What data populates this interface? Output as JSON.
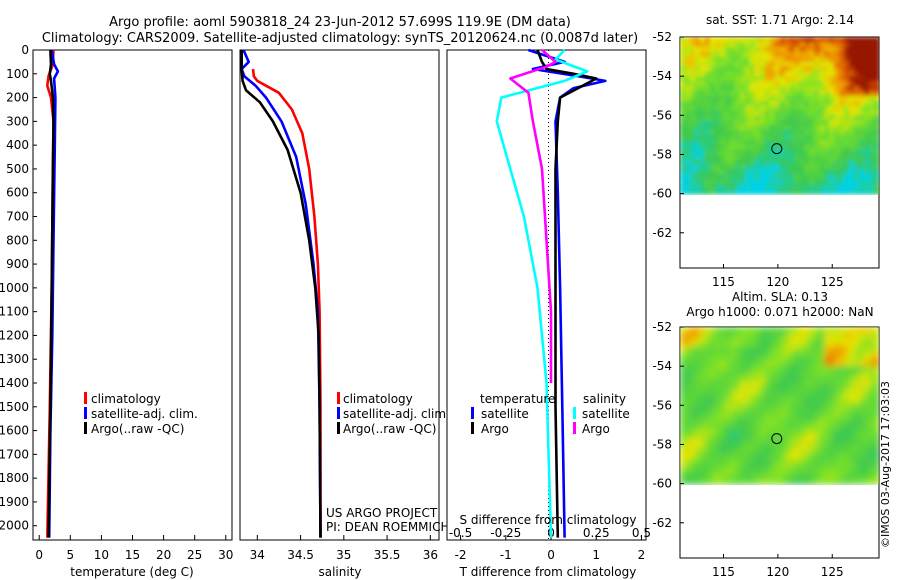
{
  "header": {
    "title_line1": "Argo profile: aoml 5903818_24 23-Jun-2012 57.699S 119.9E (DM data)",
    "title_line2": "Climatology: CARS2009. Satellite-adjusted climatology: synTS_20120624.nc (0.0087d later)"
  },
  "colors": {
    "climatology": "#ff0000",
    "satellite": "#0000ff",
    "argo": "#000000",
    "sat_salinity": "#00ffff",
    "argo_salinity": "#ff00ff"
  },
  "side_text": "©IMOS 03-Aug-2017 17:03:03",
  "chart_data": [
    {
      "type": "line",
      "id": "temperature",
      "xlabel": "temperature (deg C)",
      "ylabel": "",
      "xlim": [
        -1,
        31
      ],
      "ylim": [
        2060,
        0
      ],
      "xticks": [
        0,
        5,
        10,
        15,
        20,
        25,
        30
      ],
      "yticks": [
        0,
        100,
        200,
        300,
        400,
        500,
        600,
        700,
        800,
        900,
        1000,
        1100,
        1200,
        1300,
        1400,
        1500,
        1600,
        1700,
        1800,
        1900,
        2000
      ],
      "legend": [
        "climatology",
        "satellite-adj. clim.",
        "Argo(..raw -QC)"
      ],
      "series": [
        {
          "name": "climatology",
          "color": "#ff0000",
          "points": [
            [
              2.3,
              0
            ],
            [
              2.2,
              60
            ],
            [
              1.5,
              110
            ],
            [
              1.3,
              150
            ],
            [
              1.9,
              200
            ],
            [
              2.3,
              300
            ],
            [
              2.2,
              500
            ],
            [
              2.0,
              1000
            ],
            [
              1.7,
              1500
            ],
            [
              1.3,
              2050
            ]
          ]
        },
        {
          "name": "satellite-adj. clim.",
          "color": "#0000ff",
          "points": [
            [
              2.0,
              0
            ],
            [
              2.4,
              60
            ],
            [
              3.0,
              90
            ],
            [
              2.4,
              120
            ],
            [
              2.6,
              200
            ],
            [
              2.5,
              400
            ],
            [
              2.3,
              800
            ],
            [
              2.1,
              1200
            ],
            [
              1.8,
              1600
            ],
            [
              1.6,
              2050
            ]
          ]
        },
        {
          "name": "Argo(..raw -QC)",
          "color": "#000000",
          "points": [
            [
              1.8,
              0
            ],
            [
              1.9,
              60
            ],
            [
              1.7,
              100
            ],
            [
              1.9,
              130
            ],
            [
              2.2,
              200
            ],
            [
              2.3,
              300
            ],
            [
              2.2,
              500
            ],
            [
              2.0,
              1000
            ],
            [
              1.8,
              1500
            ],
            [
              1.5,
              2050
            ]
          ]
        }
      ]
    },
    {
      "type": "line",
      "id": "salinity",
      "xlabel": "salinity",
      "ylabel": "",
      "xlim": [
        33.8,
        36.1
      ],
      "ylim": [
        2060,
        0
      ],
      "xticks": [
        34,
        34.5,
        35,
        35.5,
        36
      ],
      "xticklabels": [
        "34",
        "34.5",
        "35",
        "35.5",
        "36"
      ],
      "legend": [
        "climatology",
        "satellite-adj. clim.",
        "Argo(..raw -QC)"
      ],
      "annotations": [
        "US ARGO PROJECT",
        "PI: DEAN ROEMMICH"
      ],
      "series": [
        {
          "name": "climatology",
          "color": "#ff0000",
          "points": [
            [
              33.95,
              80
            ],
            [
              33.96,
              110
            ],
            [
              34.0,
              130
            ],
            [
              34.1,
              150
            ],
            [
              34.25,
              180
            ],
            [
              34.4,
              250
            ],
            [
              34.52,
              350
            ],
            [
              34.6,
              500
            ],
            [
              34.66,
              700
            ],
            [
              34.7,
              900
            ],
            [
              34.72,
              1100
            ],
            [
              34.73,
              1500
            ],
            [
              34.73,
              2050
            ]
          ]
        },
        {
          "name": "satellite-adj. clim.",
          "color": "#0000ff",
          "points": [
            [
              33.84,
              0
            ],
            [
              33.9,
              50
            ],
            [
              33.82,
              80
            ],
            [
              33.85,
              110
            ],
            [
              33.98,
              150
            ],
            [
              34.1,
              200
            ],
            [
              34.28,
              300
            ],
            [
              34.45,
              450
            ],
            [
              34.56,
              650
            ],
            [
              34.65,
              900
            ],
            [
              34.7,
              1100
            ],
            [
              34.72,
              1500
            ],
            [
              34.73,
              2050
            ]
          ]
        },
        {
          "name": "Argo(..raw -QC)",
          "color": "#000000",
          "points": [
            [
              33.82,
              0
            ],
            [
              33.82,
              80
            ],
            [
              33.83,
              130
            ],
            [
              33.87,
              170
            ],
            [
              34.03,
              220
            ],
            [
              34.18,
              300
            ],
            [
              34.35,
              420
            ],
            [
              34.5,
              600
            ],
            [
              34.6,
              800
            ],
            [
              34.67,
              1000
            ],
            [
              34.71,
              1200
            ],
            [
              34.72,
              1500
            ],
            [
              34.73,
              2050
            ]
          ]
        }
      ]
    },
    {
      "type": "line",
      "id": "difference",
      "xlabel": "T difference from climatology",
      "x2label": "S difference from climatology",
      "xlim": [
        -2.3,
        2.1
      ],
      "ylim": [
        2060,
        0
      ],
      "xticks": [
        -2,
        -1,
        0,
        1,
        2
      ],
      "x2ticklabels": [
        "-0.5",
        "-0.25",
        "0",
        "0.25",
        "0.5"
      ],
      "legend_titles": [
        "temperature",
        "salinity"
      ],
      "legend": [
        "satellite",
        "Argo",
        "satellite",
        "Argo"
      ],
      "series": [
        {
          "name": "satellite",
          "quantity": "temperature",
          "color": "#0000ff",
          "points": [
            [
              -0.5,
              0
            ],
            [
              0.3,
              50
            ],
            [
              -0.4,
              80
            ],
            [
              0.6,
              110
            ],
            [
              1.2,
              130
            ],
            [
              0.5,
              160
            ],
            [
              0.2,
              200
            ],
            [
              0.1,
              300
            ],
            [
              0.15,
              600
            ],
            [
              0.2,
              1000
            ],
            [
              0.25,
              1500
            ],
            [
              0.3,
              2050
            ]
          ]
        },
        {
          "name": "Argo",
          "quantity": "temperature",
          "color": "#000000",
          "points": [
            [
              -0.3,
              0
            ],
            [
              -0.2,
              50
            ],
            [
              -0.1,
              80
            ],
            [
              0.5,
              100
            ],
            [
              1.0,
              120
            ],
            [
              0.6,
              160
            ],
            [
              0.2,
              200
            ],
            [
              0.15,
              300
            ],
            [
              0.1,
              500
            ],
            [
              0.1,
              1000
            ],
            [
              0.1,
              1500
            ],
            [
              0.15,
              2050
            ]
          ]
        },
        {
          "name": "satellite",
          "quantity": "salinity",
          "color": "#00ffff",
          "points": [
            [
              0.3,
              0
            ],
            [
              0.1,
              40
            ],
            [
              0.8,
              90
            ],
            [
              0.3,
              130
            ],
            [
              -1.1,
              200
            ],
            [
              -1.2,
              300
            ],
            [
              -0.9,
              500
            ],
            [
              -0.6,
              700
            ],
            [
              -0.3,
              1000
            ],
            [
              -0.1,
              1400
            ],
            [
              0.0,
              2050
            ]
          ]
        },
        {
          "name": "Argo",
          "quantity": "salinity",
          "color": "#ff00ff",
          "points": [
            [
              -0.2,
              0
            ],
            [
              0.1,
              50
            ],
            [
              -0.1,
              70
            ],
            [
              -0.9,
              120
            ],
            [
              -0.5,
              180
            ],
            [
              -0.4,
              300
            ],
            [
              -0.2,
              500
            ],
            [
              -0.1,
              800
            ],
            [
              0.0,
              1100
            ],
            [
              0.0,
              1400
            ]
          ]
        }
      ]
    },
    {
      "type": "heatmap",
      "id": "sst_map",
      "title": "sat. SST: 1.71  Argo: 2.14",
      "xlim": [
        111,
        129.3
      ],
      "ylim": [
        -63.8,
        -52
      ],
      "xticks": [
        115,
        120,
        125
      ],
      "yticks": [
        -52,
        -54,
        -56,
        -58,
        -60,
        -62
      ],
      "data_ylim": [
        -60,
        -52
      ],
      "marker": [
        119.9,
        -57.7
      ]
    },
    {
      "type": "heatmap",
      "id": "sla_map",
      "title": "Altim. SLA: 0.13",
      "subtitle": "Argo h1000: 0.071  h2000: NaN",
      "xlim": [
        111,
        129.3
      ],
      "ylim": [
        -63.8,
        -52
      ],
      "xticks": [
        115,
        120,
        125
      ],
      "yticks": [
        -52,
        -54,
        -56,
        -58,
        -60,
        -62
      ],
      "data_ylim": [
        -60,
        -52
      ],
      "marker": [
        119.9,
        -57.7
      ]
    }
  ]
}
